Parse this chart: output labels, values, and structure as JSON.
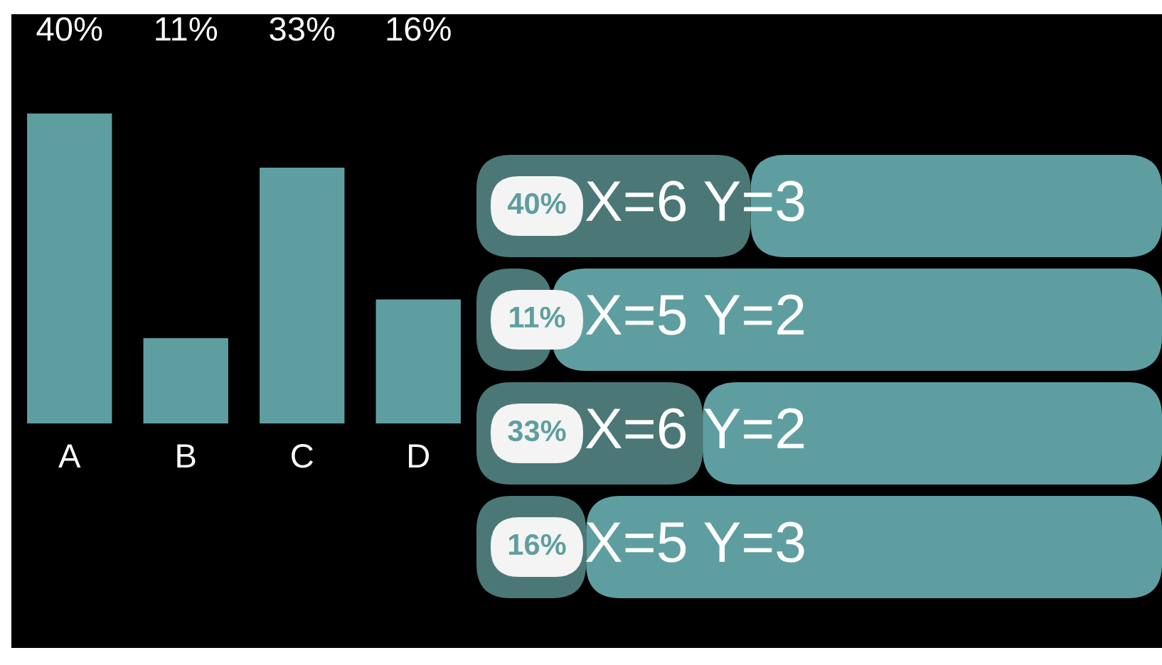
{
  "chart_data": [
    {
      "type": "bar",
      "categories": [
        "A",
        "B",
        "C",
        "D"
      ],
      "values": [
        40,
        11,
        33,
        16
      ],
      "color": "#5f9ea0",
      "value_labels": [
        "40%",
        "11%",
        "33%",
        "16%"
      ]
    },
    {
      "type": "bar",
      "orientation": "horizontal",
      "stacked": true,
      "categories": [
        "X=6 Y=3",
        "X=5 Y=2",
        "X=6 Y=2",
        "X=5 Y=3"
      ],
      "xlim": [
        0,
        100
      ],
      "series": [
        {
          "color": "#4b7876",
          "values": [
            40,
            11,
            33,
            16
          ],
          "value_labels": [
            "40%",
            "11%",
            "33%",
            "16%"
          ]
        },
        {
          "color": "#5f9ea0",
          "values": [
            60,
            89,
            67,
            84
          ]
        }
      ]
    }
  ]
}
